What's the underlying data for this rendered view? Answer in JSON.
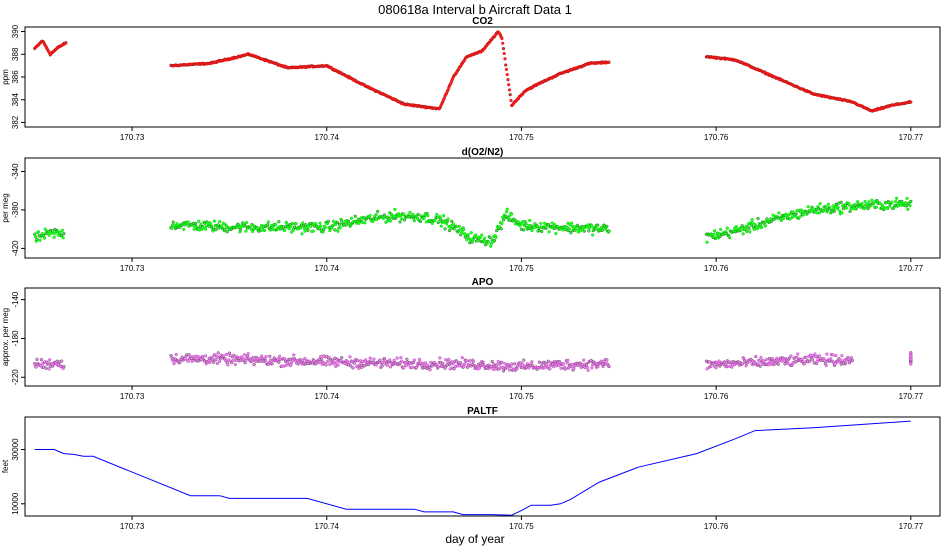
{
  "figure_title": "080618a   Interval b Aircraft Data 1",
  "x_axis_label": "day of year",
  "chart_data": [
    {
      "type": "scatter",
      "title": "CO2",
      "ylabel": "ppm",
      "xlim": [
        170.7245,
        170.7715
      ],
      "ylim": [
        381.6,
        390.4
      ],
      "x_ticks": [
        "170.73",
        "170.74",
        "170.75",
        "170.76",
        "170.77"
      ],
      "y_ticks": [
        "382",
        "384",
        "386",
        "388",
        "390"
      ],
      "color": "#ff0000",
      "point_color": "#ff2222",
      "series": [
        {
          "name": "CO2",
          "x": [
            170.725,
            170.7254,
            170.7258,
            170.7262,
            170.7266,
            170.732,
            170.734,
            170.736,
            170.738,
            170.74,
            170.742,
            170.744,
            170.7458,
            170.7465,
            170.7472,
            170.748,
            170.7488,
            170.749,
            170.7495,
            170.7502,
            170.751,
            170.752,
            170.7535,
            170.7545,
            170.7595,
            170.761,
            170.763,
            170.765,
            170.767,
            170.768,
            170.769,
            170.77
          ],
          "y": [
            388.5,
            389.2,
            388.0,
            388.6,
            389.0,
            387.0,
            387.2,
            388.0,
            386.8,
            387.0,
            385.2,
            383.6,
            383.2,
            386.0,
            387.8,
            388.3,
            390.0,
            389.4,
            383.5,
            384.8,
            385.5,
            386.3,
            387.2,
            387.3,
            387.8,
            387.5,
            386.0,
            384.5,
            383.8,
            383.0,
            383.5,
            383.8
          ]
        }
      ]
    },
    {
      "type": "scatter",
      "title": "d(O2/N2)",
      "ylabel": "per meg",
      "xlim": [
        170.7245,
        170.7715
      ],
      "ylim": [
        -430,
        -326
      ],
      "x_ticks": [
        "170.73",
        "170.74",
        "170.75",
        "170.76",
        "170.77"
      ],
      "y_ticks": [
        "-340",
        "-380",
        "-420"
      ],
      "color": "#00cc00",
      "point_color": "#22ff22",
      "series": [
        {
          "name": "d(O2/N2)",
          "x": [
            170.725,
            170.7255,
            170.726,
            170.7265,
            170.732,
            170.733,
            170.734,
            170.736,
            170.738,
            170.74,
            170.742,
            170.7435,
            170.745,
            170.746,
            170.7475,
            170.7485,
            170.7492,
            170.75,
            170.752,
            170.7545,
            170.7595,
            170.761,
            170.763,
            170.765,
            170.767,
            170.769,
            170.77
          ],
          "y": [
            -410,
            -406,
            -404,
            -405,
            -395,
            -396,
            -397,
            -398,
            -398,
            -398,
            -390,
            -386,
            -387,
            -392,
            -410,
            -412,
            -385,
            -396,
            -398,
            -400,
            -408,
            -402,
            -390,
            -380,
            -376,
            -374,
            -374
          ]
        }
      ]
    },
    {
      "type": "scatter",
      "title": "APO",
      "ylabel": "approx. per meg",
      "xlim": [
        170.7245,
        170.7715
      ],
      "ylim": [
        -229,
        -128
      ],
      "x_ticks": [
        "170.73",
        "170.74",
        "170.75",
        "170.76",
        "170.77"
      ],
      "y_ticks": [
        "-140",
        "-180",
        "-220"
      ],
      "color": "#aa33aa",
      "point_color": "#ee88ee",
      "series": [
        {
          "name": "APO",
          "x": [
            170.725,
            170.7255,
            170.726,
            170.7265,
            170.732,
            170.734,
            170.736,
            170.738,
            170.74,
            170.742,
            170.744,
            170.746,
            170.748,
            170.75,
            170.752,
            170.7545,
            170.7595,
            170.762,
            170.765,
            170.767,
            170.77
          ],
          "y": [
            -206,
            -207,
            -205,
            -206,
            -201,
            -201,
            -202,
            -203,
            -204,
            -205,
            -206,
            -206,
            -207,
            -209,
            -207,
            -206,
            -207,
            -205,
            -202,
            -202,
            -201
          ]
        }
      ]
    },
    {
      "type": "line",
      "title": "PALTF",
      "ylabel": "feet",
      "xlim": [
        170.7245,
        170.7715
      ],
      "ylim": [
        5500,
        42000
      ],
      "x_ticks": [
        "170.73",
        "170.74",
        "170.75",
        "170.76",
        "170.77"
      ],
      "y_ticks": [
        "10000",
        "30000"
      ],
      "color": "#0000ff",
      "series": [
        {
          "name": "PALTF",
          "x": [
            170.725,
            170.726,
            170.7265,
            170.727,
            170.7275,
            170.728,
            170.733,
            170.7345,
            170.735,
            170.739,
            170.741,
            170.7445,
            170.745,
            170.7465,
            170.747,
            170.7485,
            170.7495,
            170.75,
            170.7505,
            170.7515,
            170.752,
            170.7525,
            170.754,
            170.756,
            170.759,
            170.761,
            170.762,
            170.765,
            170.768,
            170.77
          ],
          "y": [
            30000,
            30000,
            28500,
            28200,
            27500,
            27500,
            13000,
            13000,
            12000,
            12000,
            8000,
            8000,
            7000,
            7000,
            6000,
            6000,
            5800,
            7500,
            9500,
            9500,
            10000,
            11500,
            18000,
            23500,
            28500,
            34000,
            37000,
            38000,
            39500,
            40500
          ]
        }
      ]
    }
  ]
}
